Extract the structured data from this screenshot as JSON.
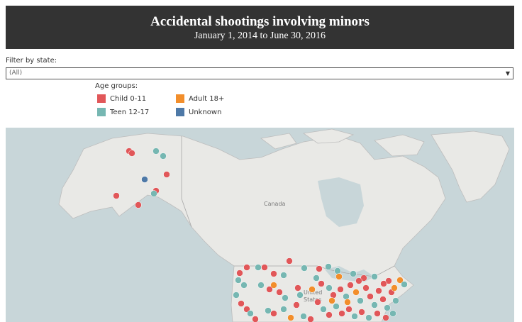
{
  "header": {
    "title": "Accidental shootings involving minors",
    "subtitle": "January 1, 2014 to June 30, 2016"
  },
  "filter": {
    "label": "Filter by state:",
    "value": "(All)"
  },
  "legend": {
    "title": "Age groups:",
    "items": [
      {
        "label": "Child 0-11",
        "color": "#e15759"
      },
      {
        "label": "Adult 18+",
        "color": "#f28e2b"
      },
      {
        "label": "Teen 12-17",
        "color": "#76b7b2"
      },
      {
        "label": "Unknown",
        "color": "#4e79a7"
      }
    ]
  },
  "map": {
    "labels": {
      "canada": "Canada",
      "us": "United States"
    },
    "colors": {
      "water": "#c8d6d9",
      "land": "#e9e9e6",
      "border": "#bdbdbd"
    }
  }
}
